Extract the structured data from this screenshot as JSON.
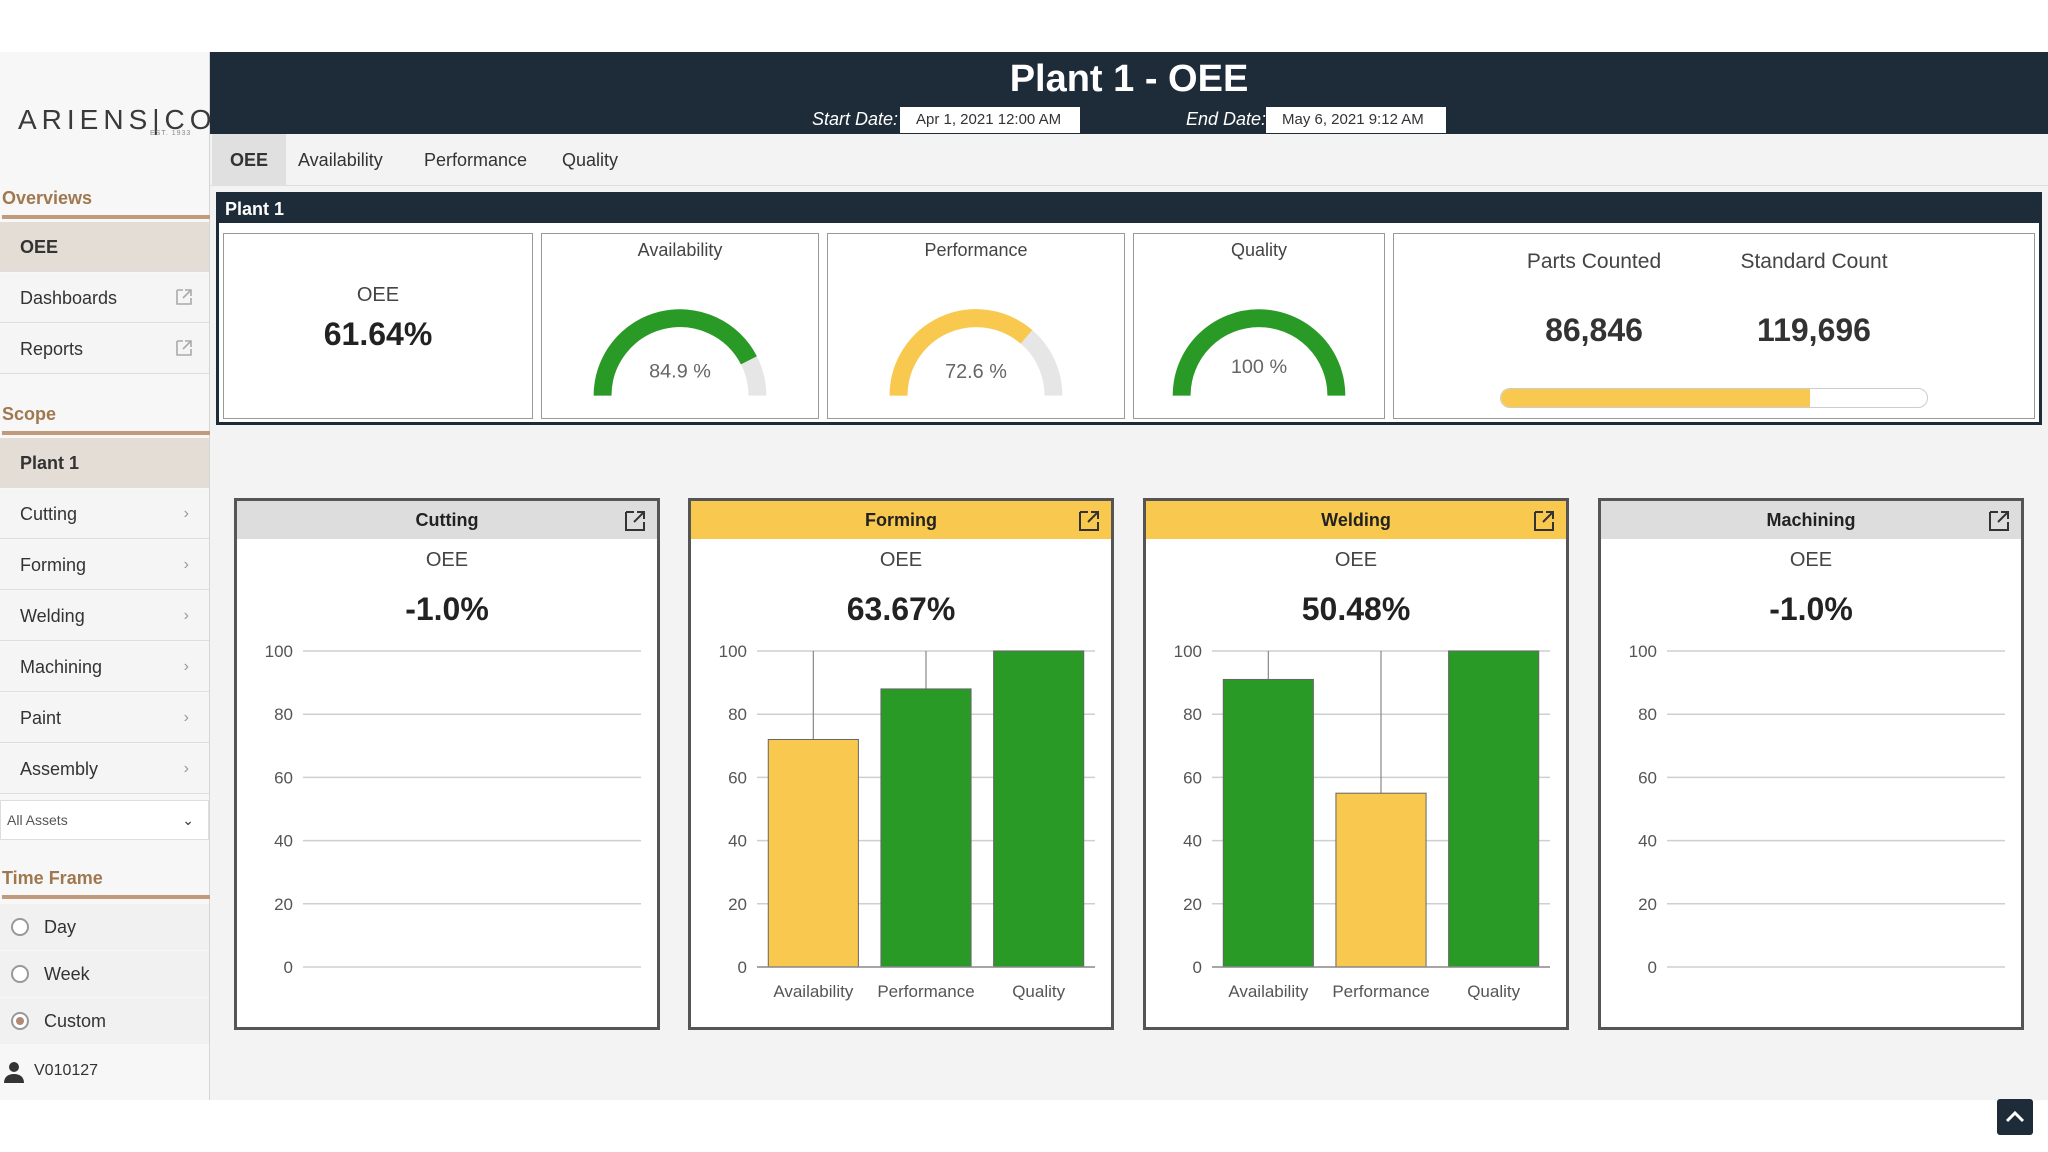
{
  "app": {
    "brand": "ARIENS|CO",
    "brand_sub": "EST. 1933"
  },
  "header": {
    "title": "Plant 1 - OEE",
    "start_label": "Start Date:",
    "start_value": "Apr 1, 2021 12:00 AM",
    "end_label": "End Date:",
    "end_value": "May 6, 2021 9:12 AM"
  },
  "tabs": [
    "OEE",
    "Availability",
    "Performance",
    "Quality"
  ],
  "sidebar": {
    "overviews_title": "Overviews",
    "overviews": [
      {
        "label": "OEE"
      },
      {
        "label": "Dashboards"
      },
      {
        "label": "Reports"
      }
    ],
    "scope_title": "Scope",
    "scope": [
      {
        "label": "Plant 1"
      },
      {
        "label": "Cutting"
      },
      {
        "label": "Forming"
      },
      {
        "label": "Welding"
      },
      {
        "label": "Machining"
      },
      {
        "label": "Paint"
      },
      {
        "label": "Assembly"
      }
    ],
    "assets_select": "All Assets",
    "timeframe_title": "Time Frame",
    "timeframe": [
      {
        "label": "Day",
        "selected": false
      },
      {
        "label": "Week",
        "selected": false
      },
      {
        "label": "Custom",
        "selected": true
      }
    ],
    "user": "V010127"
  },
  "plant": {
    "heading": "Plant 1",
    "oee_label": "OEE",
    "oee_value": "61.64%",
    "availability_label": "Availability",
    "availability_value": 84.9,
    "availability_text": "84.9 %",
    "performance_label": "Performance",
    "performance_value": 72.6,
    "performance_text": "72.6 %",
    "quality_label": "Quality",
    "quality_value": 100,
    "quality_text": "100 %",
    "parts_counted_label": "Parts Counted",
    "parts_counted": "86,846",
    "standard_count_label": "Standard Count",
    "standard_count": "119,696",
    "parts_progress": 0.7256
  },
  "colors": {
    "dark": "#1e2b38",
    "green": "#2a9a26",
    "yellow": "#f8c94e",
    "gray_track": "#e6e6e6"
  },
  "chart_data": [
    {
      "type": "bar",
      "title": "Cutting",
      "oee_label": "OEE",
      "oee_value": "-1.0%",
      "highlight": false,
      "categories": [],
      "values": [],
      "yticks": [
        0,
        20,
        40,
        60,
        80,
        100
      ],
      "ylim": [
        0,
        100
      ]
    },
    {
      "type": "bar",
      "title": "Forming",
      "oee_label": "OEE",
      "oee_value": "63.67%",
      "highlight": true,
      "categories": [
        "Availability",
        "Performance",
        "Quality"
      ],
      "values": [
        72,
        88,
        100
      ],
      "bar_colors": [
        "#f8c94e",
        "#2a9a26",
        "#2a9a26"
      ],
      "yticks": [
        0,
        20,
        40,
        60,
        80,
        100
      ],
      "ylim": [
        0,
        100
      ]
    },
    {
      "type": "bar",
      "title": "Welding",
      "oee_label": "OEE",
      "oee_value": "50.48%",
      "highlight": true,
      "categories": [
        "Availability",
        "Performance",
        "Quality"
      ],
      "values": [
        91,
        55,
        100
      ],
      "bar_colors": [
        "#2a9a26",
        "#f8c94e",
        "#2a9a26"
      ],
      "yticks": [
        0,
        20,
        40,
        60,
        80,
        100
      ],
      "ylim": [
        0,
        100
      ]
    },
    {
      "type": "bar",
      "title": "Machining",
      "oee_label": "OEE",
      "oee_value": "-1.0%",
      "highlight": false,
      "categories": [],
      "values": [],
      "yticks": [
        0,
        20,
        40,
        60,
        80,
        100
      ],
      "ylim": [
        0,
        100
      ]
    }
  ]
}
